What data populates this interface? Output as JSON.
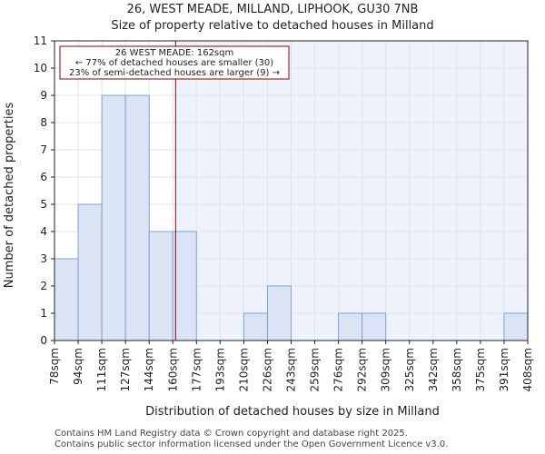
{
  "chart_data": {
    "type": "bar",
    "title": "26, WEST MEADE, MILLAND, LIPHOOK, GU30 7NB",
    "subtitle": "Size of property relative to detached houses in Milland",
    "xlabel": "Distribution of detached houses by size in Milland",
    "ylabel": "Number of detached properties",
    "bin_edges": [
      78,
      94,
      111,
      127,
      144,
      160,
      177,
      193,
      210,
      226,
      243,
      259,
      276,
      292,
      309,
      325,
      342,
      358,
      375,
      391,
      408
    ],
    "tick_labels": [
      "78sqm",
      "94sqm",
      "111sqm",
      "127sqm",
      "144sqm",
      "160sqm",
      "177sqm",
      "193sqm",
      "210sqm",
      "226sqm",
      "243sqm",
      "259sqm",
      "276sqm",
      "292sqm",
      "309sqm",
      "325sqm",
      "342sqm",
      "358sqm",
      "375sqm",
      "391sqm",
      "408sqm"
    ],
    "values": [
      3,
      5,
      9,
      9,
      4,
      4,
      0,
      0,
      1,
      2,
      0,
      0,
      1,
      1,
      0,
      0,
      0,
      0,
      0,
      1
    ],
    "ylim": [
      0,
      11
    ],
    "yticks": [
      0,
      1,
      2,
      3,
      4,
      5,
      6,
      7,
      8,
      9,
      10,
      11
    ],
    "marker_value": 162,
    "annotation": {
      "line1": "26 WEST MEADE: 162sqm",
      "line2": "← 77% of detached houses are smaller (30)",
      "line3": "23% of semi-detached houses are larger (9) →"
    },
    "colors": {
      "bar_fill": "#dae4f4",
      "bar_stroke": "#7fa3d6",
      "grid": "#dde4ef",
      "background_right": "#eef2fb",
      "marker": "#8b0000",
      "annotation_border": "#8b0000"
    }
  },
  "footer": {
    "line1": "Contains HM Land Registry data © Crown copyright and database right 2025.",
    "line2": "Contains public sector information licensed under the Open Government Licence v3.0."
  }
}
